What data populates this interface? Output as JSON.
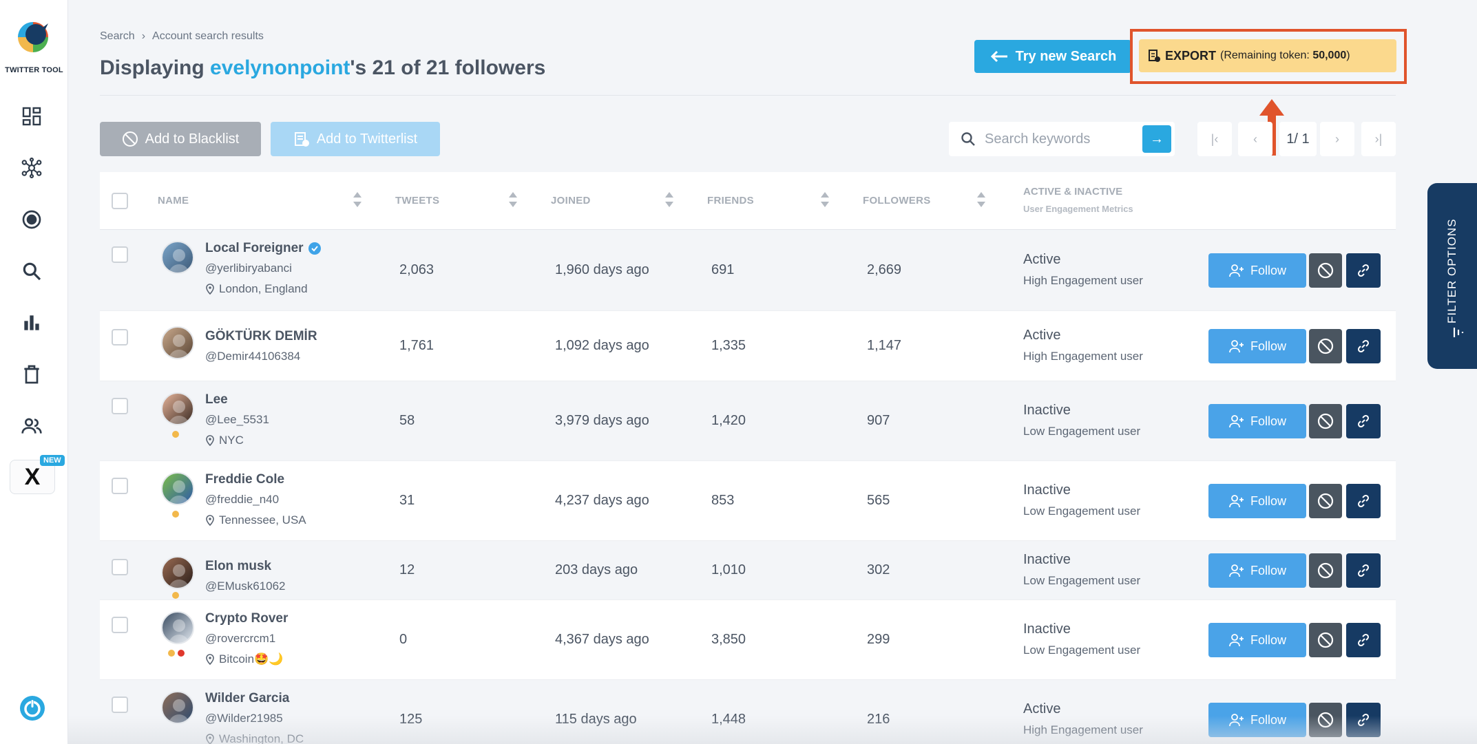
{
  "sidebar": {
    "logo_text": "TWITTER TOOL",
    "x_label": "X",
    "new_badge": "NEW",
    "icons": [
      "dashboard-icon",
      "network-icon",
      "radar-icon",
      "search-icon",
      "bar-chart-icon",
      "trash-icon",
      "users-icon",
      "x-logo-icon",
      "power-icon"
    ]
  },
  "breadcrumb": {
    "root": "Search",
    "current": "Account search results"
  },
  "title": {
    "prefix": "Displaying ",
    "username": "evelynonpoint",
    "suffix": "'s 21 of 21 followers"
  },
  "header": {
    "try_label": "Try new Search",
    "export_label": "EXPORT",
    "export_token_prefix": "(Remaining token: ",
    "export_token_value": "50,000",
    "export_token_suffix": ")"
  },
  "toolbar": {
    "blacklist_label": "Add to Blacklist",
    "twitterlist_label": "Add to Twitterlist",
    "search_placeholder": "Search keywords",
    "search_go": "→",
    "pager_first": "|‹",
    "pager_prev": "‹",
    "pager_current": "1/ 1",
    "pager_next": "›",
    "pager_last": "›|"
  },
  "table": {
    "headers": {
      "name": "NAME",
      "tweets": "TWEETS",
      "joined": "JOINED",
      "friends": "FRIENDS",
      "followers": "FOLLOWERS",
      "status": "ACTIVE & INACTIVE",
      "status_sub": "User Engagement Metrics"
    },
    "follow_label": "Follow",
    "rows": [
      {
        "name": "Local Foreigner",
        "verified": true,
        "handle": "@yerlibiryabanci",
        "location": "London, England",
        "tweets": "2,063",
        "joined": "1,960 days ago",
        "friends": "691",
        "followers": "2,669",
        "status": "Active",
        "engagement": "High Engagement user",
        "dots": []
      },
      {
        "name": "GÖKTÜRK DEMİR",
        "verified": false,
        "handle": "@Demir44106384",
        "location": "",
        "tweets": "1,761",
        "joined": "1,092 days ago",
        "friends": "1,335",
        "followers": "1,147",
        "status": "Active",
        "engagement": "High Engagement user",
        "dots": []
      },
      {
        "name": "Lee",
        "verified": false,
        "handle": "@Lee_5531",
        "location": "NYC",
        "tweets": "58",
        "joined": "3,979 days ago",
        "friends": "1,420",
        "followers": "907",
        "status": "Inactive",
        "engagement": "Low Engagement user",
        "dots": [
          "#f2b84b"
        ]
      },
      {
        "name": "Freddie Cole",
        "verified": false,
        "handle": "@freddie_n40",
        "location": "Tennessee, USA",
        "tweets": "31",
        "joined": "4,237 days ago",
        "friends": "853",
        "followers": "565",
        "status": "Inactive",
        "engagement": "Low Engagement user",
        "dots": [
          "#f2b84b"
        ]
      },
      {
        "name": "Elon musk",
        "verified": false,
        "handle": "@EMusk61062",
        "location": "",
        "tweets": "12",
        "joined": "203 days ago",
        "friends": "1,010",
        "followers": "302",
        "status": "Inactive",
        "engagement": "Low Engagement user",
        "dots": [
          "#f2b84b"
        ]
      },
      {
        "name": "Crypto Rover",
        "verified": false,
        "handle": "@rovercrcm1",
        "location": "Bitcoin🤩🌙",
        "tweets": "0",
        "joined": "4,367 days ago",
        "friends": "3,850",
        "followers": "299",
        "status": "Inactive",
        "engagement": "Low Engagement user",
        "dots": [
          "#f2b84b",
          "#e0382c"
        ]
      },
      {
        "name": "Wilder Garcia",
        "verified": false,
        "handle": "@Wilder21985",
        "location": "Washington, DC",
        "tweets": "125",
        "joined": "115 days ago",
        "friends": "1,448",
        "followers": "216",
        "status": "Active",
        "engagement": "High Engagement user",
        "dots": []
      }
    ]
  },
  "filter": {
    "label": "FILTER OPTIONS"
  },
  "colors": {
    "accent": "#2aa8e0",
    "export_bg": "#fbd98d",
    "highlight": "#e0542c",
    "navy": "#163a63"
  }
}
